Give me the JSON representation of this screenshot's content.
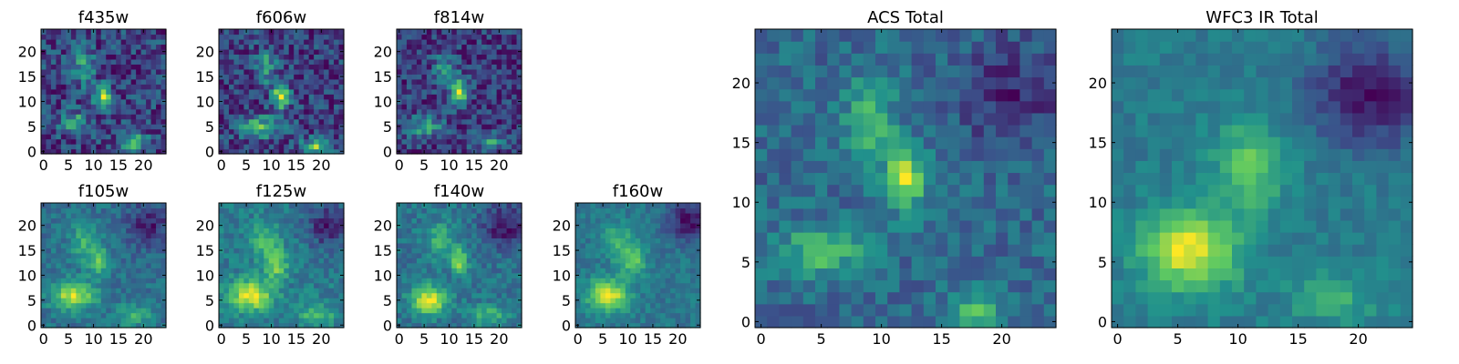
{
  "figure": {
    "background": "#ffffff",
    "colormap": "viridis",
    "colormap_stops": [
      "#440154",
      "#3b528b",
      "#21918c",
      "#5ec962",
      "#fde725"
    ]
  },
  "chart_data": [
    {
      "type": "heatmap",
      "title": "f435w",
      "grid_size": 25,
      "xlim": [
        -0.5,
        24.5
      ],
      "ylim": [
        -0.5,
        24.5
      ],
      "xticks": [
        0,
        5,
        10,
        15,
        20
      ],
      "yticks": [
        0,
        5,
        10,
        15,
        20
      ],
      "noise": 0.3,
      "seed": 11,
      "sources": [
        {
          "x": 12,
          "y": 11,
          "amp": 0.95,
          "sx": 1.2,
          "sy": 1.6
        },
        {
          "x": 8,
          "y": 17,
          "amp": 0.55,
          "sx": 1.5,
          "sy": 2.5
        },
        {
          "x": 6,
          "y": 6,
          "amp": 0.6,
          "sx": 2.0,
          "sy": 1.5
        },
        {
          "x": 18,
          "y": 2,
          "amp": 0.65,
          "sx": 2.0,
          "sy": 1.5
        }
      ]
    },
    {
      "type": "heatmap",
      "title": "f606w",
      "grid_size": 25,
      "xlim": [
        -0.5,
        24.5
      ],
      "ylim": [
        -0.5,
        24.5
      ],
      "xticks": [
        0,
        5,
        10,
        15,
        20
      ],
      "yticks": [
        0,
        5,
        10,
        15,
        20
      ],
      "noise": 0.24,
      "seed": 23,
      "sources": [
        {
          "x": 12,
          "y": 11,
          "amp": 0.95,
          "sx": 1.2,
          "sy": 1.6
        },
        {
          "x": 9,
          "y": 17,
          "amp": 0.45,
          "sx": 1.5,
          "sy": 2.5
        },
        {
          "x": 8,
          "y": 5,
          "amp": 0.6,
          "sx": 3.0,
          "sy": 1.5
        },
        {
          "x": 19,
          "y": 1,
          "amp": 0.7,
          "sx": 2.0,
          "sy": 1.2
        }
      ]
    },
    {
      "type": "heatmap",
      "title": "f814w",
      "grid_size": 25,
      "xlim": [
        -0.5,
        24.5
      ],
      "ylim": [
        -0.5,
        24.5
      ],
      "xticks": [
        0,
        5,
        10,
        15,
        20
      ],
      "yticks": [
        0,
        5,
        10,
        15,
        20
      ],
      "noise": 0.26,
      "seed": 37,
      "sources": [
        {
          "x": 12,
          "y": 12,
          "amp": 0.95,
          "sx": 1.2,
          "sy": 2.0
        },
        {
          "x": 9,
          "y": 17,
          "amp": 0.45,
          "sx": 1.5,
          "sy": 2.5
        },
        {
          "x": 5,
          "y": 5,
          "amp": 0.6,
          "sx": 2.5,
          "sy": 1.5
        },
        {
          "x": 18,
          "y": 2,
          "amp": 0.55,
          "sx": 2.0,
          "sy": 1.2
        }
      ]
    },
    {
      "type": "heatmap",
      "title": "f105w",
      "grid_size": 25,
      "xlim": [
        -0.5,
        24.5
      ],
      "ylim": [
        -0.5,
        24.5
      ],
      "xticks": [
        0,
        5,
        10,
        15,
        20
      ],
      "yticks": [
        0,
        5,
        10,
        15,
        20
      ],
      "noise": 0.18,
      "seed": 41,
      "sources": [
        {
          "x": 6,
          "y": 6,
          "amp": 0.95,
          "sx": 3.0,
          "sy": 2.0
        },
        {
          "x": 11,
          "y": 13,
          "amp": 0.6,
          "sx": 1.6,
          "sy": 2.0
        },
        {
          "x": 8,
          "y": 17,
          "amp": 0.45,
          "sx": 2.0,
          "sy": 2.5
        },
        {
          "x": 18,
          "y": 2,
          "amp": 0.45,
          "sx": 2.5,
          "sy": 1.5
        },
        {
          "x": 21,
          "y": 20,
          "amp": -0.5,
          "sx": 3.0,
          "sy": 3.0
        }
      ]
    },
    {
      "type": "heatmap",
      "title": "f125w",
      "grid_size": 25,
      "xlim": [
        -0.5,
        24.5
      ],
      "ylim": [
        -0.5,
        24.5
      ],
      "xticks": [
        0,
        5,
        10,
        15,
        20
      ],
      "yticks": [
        0,
        5,
        10,
        15,
        20
      ],
      "noise": 0.18,
      "seed": 53,
      "sources": [
        {
          "x": 6,
          "y": 6,
          "amp": 0.9,
          "sx": 3.0,
          "sy": 2.2
        },
        {
          "x": 11,
          "y": 12,
          "amp": 0.6,
          "sx": 1.6,
          "sy": 2.0
        },
        {
          "x": 9,
          "y": 17,
          "amp": 0.45,
          "sx": 2.0,
          "sy": 2.5
        },
        {
          "x": 19,
          "y": 2,
          "amp": 0.45,
          "sx": 2.5,
          "sy": 1.5
        },
        {
          "x": 21,
          "y": 20,
          "amp": -0.5,
          "sx": 3.0,
          "sy": 3.0
        }
      ]
    },
    {
      "type": "heatmap",
      "title": "f140w",
      "grid_size": 25,
      "xlim": [
        -0.5,
        24.5
      ],
      "ylim": [
        -0.5,
        24.5
      ],
      "xticks": [
        0,
        5,
        10,
        15,
        20
      ],
      "yticks": [
        0,
        5,
        10,
        15,
        20
      ],
      "noise": 0.18,
      "seed": 67,
      "sources": [
        {
          "x": 6,
          "y": 5,
          "amp": 0.95,
          "sx": 2.5,
          "sy": 2.0
        },
        {
          "x": 12,
          "y": 13,
          "amp": 0.75,
          "sx": 1.2,
          "sy": 1.8
        },
        {
          "x": 8,
          "y": 17,
          "amp": 0.45,
          "sx": 2.0,
          "sy": 2.5
        },
        {
          "x": 18,
          "y": 2,
          "amp": 0.45,
          "sx": 2.5,
          "sy": 1.5
        },
        {
          "x": 21,
          "y": 20,
          "amp": -0.55,
          "sx": 3.0,
          "sy": 3.0
        }
      ]
    },
    {
      "type": "heatmap",
      "title": "f160w",
      "grid_size": 25,
      "xlim": [
        -0.5,
        24.5
      ],
      "ylim": [
        -0.5,
        24.5
      ],
      "xticks": [
        0,
        5,
        10,
        15,
        20
      ],
      "yticks": [
        0,
        5,
        10,
        15,
        20
      ],
      "noise": 0.14,
      "seed": 79,
      "sources": [
        {
          "x": 6,
          "y": 6,
          "amp": 0.95,
          "sx": 2.8,
          "sy": 2.2
        },
        {
          "x": 11,
          "y": 13,
          "amp": 0.55,
          "sx": 1.8,
          "sy": 2.2
        },
        {
          "x": 8,
          "y": 17,
          "amp": 0.4,
          "sx": 2.0,
          "sy": 2.5
        },
        {
          "x": 22,
          "y": 21,
          "amp": -0.55,
          "sx": 3.0,
          "sy": 3.0
        }
      ]
    },
    {
      "type": "heatmap",
      "title": "ACS Total",
      "grid_size": 25,
      "xlim": [
        -0.5,
        24.5
      ],
      "ylim": [
        -0.5,
        24.5
      ],
      "xticks": [
        0,
        5,
        10,
        15,
        20
      ],
      "yticks": [
        0,
        5,
        10,
        15,
        20
      ],
      "noise": 0.2,
      "seed": 97,
      "sources": [
        {
          "x": 12,
          "y": 12,
          "amp": 0.95,
          "sx": 1.2,
          "sy": 1.8
        },
        {
          "x": 9,
          "y": 17,
          "amp": 0.55,
          "sx": 1.5,
          "sy": 2.5
        },
        {
          "x": 5,
          "y": 6,
          "amp": 0.6,
          "sx": 2.5,
          "sy": 1.5
        },
        {
          "x": 18,
          "y": 1,
          "amp": 0.6,
          "sx": 1.5,
          "sy": 1.2
        },
        {
          "x": 21,
          "y": 19,
          "amp": -0.4,
          "sx": 3.0,
          "sy": 3.0
        }
      ]
    },
    {
      "type": "heatmap",
      "title": "WFC3 IR Total",
      "grid_size": 25,
      "xlim": [
        -0.5,
        24.5
      ],
      "ylim": [
        -0.5,
        24.5
      ],
      "xticks": [
        0,
        5,
        10,
        15,
        20
      ],
      "yticks": [
        0,
        5,
        10,
        15,
        20
      ],
      "noise": 0.12,
      "seed": 113,
      "sources": [
        {
          "x": 6,
          "y": 6,
          "amp": 0.95,
          "sx": 2.8,
          "sy": 2.3
        },
        {
          "x": 11,
          "y": 13,
          "amp": 0.55,
          "sx": 2.0,
          "sy": 2.5
        },
        {
          "x": 18,
          "y": 2,
          "amp": 0.35,
          "sx": 2.5,
          "sy": 1.5
        },
        {
          "x": 21,
          "y": 19,
          "amp": -0.6,
          "sx": 3.5,
          "sy": 3.0
        }
      ]
    }
  ]
}
